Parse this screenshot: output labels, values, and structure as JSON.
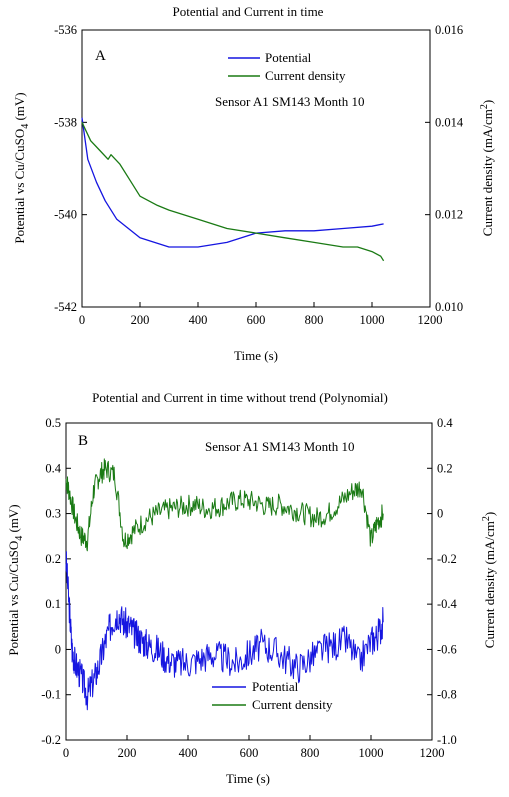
{
  "colors": {
    "potential": "#1515e0",
    "current": "#1a7a14"
  },
  "chart_data": [
    {
      "type": "line",
      "panel": "A",
      "title": "Potential and Current in time",
      "xlabel": "Time (s)",
      "ylabel_left_main": "Potential vs Cu/CuSO",
      "ylabel_left_sub": "4",
      "ylabel_left_tail": " (mV)",
      "ylabel_right_main": "Current density (mA/cm",
      "ylabel_right_sup": "2",
      "ylabel_right_tail": ")",
      "xlim": [
        0,
        1200
      ],
      "ylim_left": [
        -542,
        -536
      ],
      "ylim_right": [
        0.01,
        0.016
      ],
      "x_ticks": [
        "0",
        "200",
        "400",
        "600",
        "800",
        "1000",
        "1200"
      ],
      "y_left_ticks": [
        "-536",
        "-538",
        "-540",
        "-542"
      ],
      "y_right_ticks": [
        "0.016",
        "0.014",
        "0.012",
        "0.010"
      ],
      "annotation": "Sensor A1 SM143 Month 10",
      "legend": [
        "Potential",
        "Current density"
      ],
      "legend_position": "top-right",
      "series": [
        {
          "name": "Potential",
          "axis": "left",
          "color_key": "potential",
          "x": [
            0,
            20,
            50,
            80,
            120,
            160,
            200,
            250,
            300,
            400,
            500,
            550,
            600,
            700,
            800,
            900,
            1000,
            1040
          ],
          "y": [
            -537.9,
            -538.8,
            -539.3,
            -539.7,
            -540.1,
            -540.3,
            -540.5,
            -540.6,
            -540.7,
            -540.7,
            -540.6,
            -540.5,
            -540.4,
            -540.35,
            -540.35,
            -540.3,
            -540.25,
            -540.2
          ]
        },
        {
          "name": "Current density",
          "axis": "right",
          "color_key": "current",
          "x": [
            0,
            30,
            60,
            90,
            100,
            130,
            160,
            200,
            260,
            300,
            400,
            500,
            600,
            700,
            800,
            900,
            950,
            1000,
            1030,
            1040
          ],
          "y": [
            0.014,
            0.0136,
            0.0134,
            0.0132,
            0.0133,
            0.0131,
            0.0128,
            0.0124,
            0.0122,
            0.0121,
            0.0119,
            0.0117,
            0.0116,
            0.0115,
            0.0114,
            0.0113,
            0.0113,
            0.0112,
            0.0111,
            0.011
          ]
        }
      ]
    },
    {
      "type": "line",
      "panel": "B",
      "title": "Potential and Current in time without trend (Polynomial)",
      "xlabel": "Time (s)",
      "ylabel_left_main": "Potential vs Cu/CuSO",
      "ylabel_left_sub": "4",
      "ylabel_left_tail": " (mV)",
      "ylabel_right_main": "Current density (mA/cm",
      "ylabel_right_sup": "2",
      "ylabel_right_tail": ")",
      "xlim": [
        0,
        1200
      ],
      "ylim_left": [
        -0.2,
        0.5
      ],
      "ylim_right": [
        -1.0,
        0.4
      ],
      "x_ticks": [
        "0",
        "200",
        "400",
        "600",
        "800",
        "1000",
        "1200"
      ],
      "y_left_ticks": [
        "0.5",
        "0.4",
        "0.3",
        "0.2",
        "0.1",
        "0",
        "-0.1",
        "-0.2"
      ],
      "y_right_ticks": [
        "0.4",
        "0.2",
        "0",
        "-0.2",
        "-0.4",
        "-0.6",
        "-0.8",
        "-1.0"
      ],
      "annotation": "Sensor A1 SM143 Month 10",
      "legend": [
        "Potential",
        "Current density"
      ],
      "legend_position": "bottom-center",
      "series": [
        {
          "name": "Potential",
          "axis": "left",
          "color_key": "potential",
          "x": [
            0,
            10,
            20,
            30,
            50,
            70,
            90,
            110,
            130,
            150,
            170,
            190,
            210,
            230,
            250,
            270,
            300,
            330,
            360,
            400,
            440,
            480,
            520,
            560,
            600,
            640,
            680,
            720,
            760,
            800,
            840,
            880,
            920,
            960,
            1000,
            1020,
            1040
          ],
          "y": [
            0.2,
            0.1,
            0.0,
            -0.03,
            -0.06,
            -0.1,
            -0.07,
            -0.03,
            0.02,
            0.06,
            0.08,
            0.06,
            0.05,
            0.03,
            0.02,
            0.01,
            0.0,
            -0.02,
            -0.03,
            -0.03,
            -0.02,
            -0.01,
            -0.02,
            -0.03,
            -0.01,
            0.01,
            0.0,
            -0.02,
            -0.04,
            -0.02,
            0.0,
            0.01,
            0.02,
            -0.03,
            0.02,
            0.03,
            0.06
          ]
        },
        {
          "name": "Current density",
          "axis": "right",
          "color_key": "current",
          "x": [
            0,
            10,
            30,
            50,
            70,
            90,
            110,
            130,
            160,
            190,
            220,
            260,
            300,
            340,
            380,
            420,
            460,
            500,
            540,
            580,
            620,
            660,
            700,
            740,
            780,
            820,
            860,
            900,
            940,
            970,
            1000,
            1020,
            1040
          ],
          "y": [
            0.15,
            0.1,
            -0.02,
            -0.1,
            -0.12,
            0.1,
            0.17,
            0.2,
            0.17,
            -0.12,
            -0.08,
            -0.03,
            0.0,
            0.02,
            0.03,
            0.04,
            0.02,
            0.03,
            0.05,
            0.06,
            0.05,
            0.03,
            0.04,
            0.02,
            0.0,
            -0.02,
            0.0,
            0.05,
            0.1,
            0.12,
            -0.12,
            -0.04,
            0.0
          ]
        }
      ]
    }
  ]
}
